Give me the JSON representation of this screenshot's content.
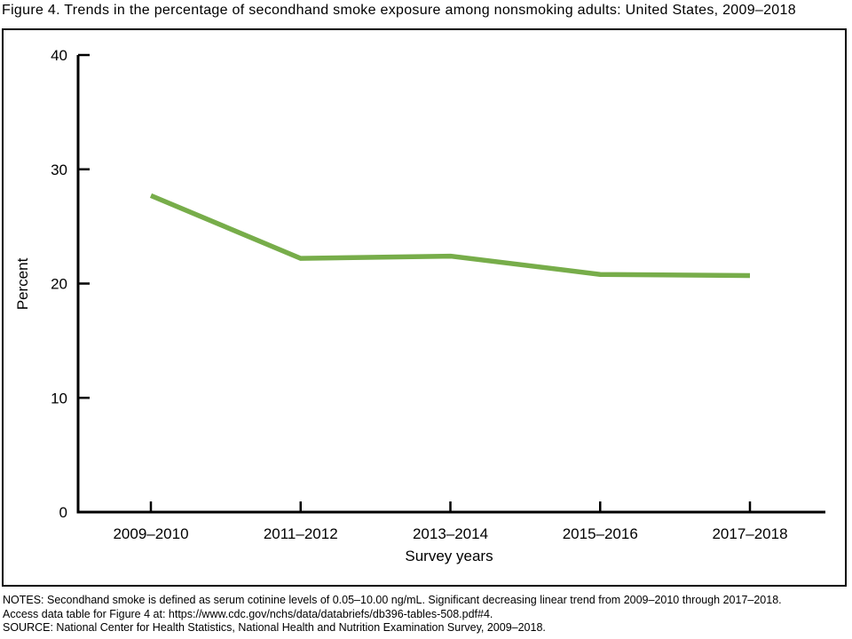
{
  "title": "Figure 4. Trends in the percentage of secondhand smoke exposure among nonsmoking adults: United States, 2009–2018",
  "chart_data": {
    "type": "line",
    "series_name": "Secondhand smoke exposure among nonsmoking adults",
    "categories": [
      "2009–2010",
      "2011–2012",
      "2013–2014",
      "2015–2016",
      "2017–2018"
    ],
    "values": [
      27.7,
      22.2,
      22.4,
      20.8,
      20.7
    ],
    "xlabel": "Survey years",
    "ylabel": "Percent",
    "ylim": [
      0,
      40
    ],
    "yticks": [
      0,
      10,
      20,
      30,
      40
    ],
    "line_color": "#77AD4A",
    "axis_color": "#000000",
    "grid": false,
    "legend": "none"
  },
  "notes": {
    "line1": "NOTES: Secondhand smoke is defined as serum cotinine levels of 0.05–10.00 ng/mL. Significant decreasing linear trend from 2009–2010 through 2017–2018.",
    "line2": "Access data table for Figure 4 at: https://www.cdc.gov/nchs/data/databriefs/db396-tables-508.pdf#4.",
    "line3": "SOURCE: National Center for Health Statistics, National Health and Nutrition Examination Survey, 2009–2018."
  }
}
